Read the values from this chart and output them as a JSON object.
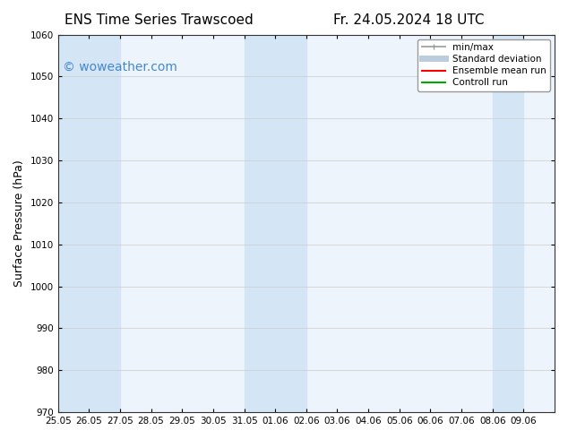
{
  "title_left": "ENS Time Series Trawscoed",
  "title_right": "Fr. 24.05.2024 18 UTC",
  "xlabel_ticks": [
    "25.05",
    "26.05",
    "27.05",
    "28.05",
    "29.05",
    "30.05",
    "31.05",
    "01.06",
    "02.06",
    "03.06",
    "04.06",
    "05.06",
    "06.06",
    "07.06",
    "08.06",
    "09.06"
  ],
  "ylabel": "Surface Pressure (hPa)",
  "ylim": [
    970,
    1060
  ],
  "yticks": [
    970,
    980,
    990,
    1000,
    1010,
    1020,
    1030,
    1040,
    1050,
    1060
  ],
  "bg_color": "#ffffff",
  "plot_bg_color": "#eef4fb",
  "shaded_color": "#d4e6f5",
  "watermark": "© woweather.com",
  "watermark_color": "#4488cc",
  "title_fontsize": 11,
  "tick_fontsize": 7.5,
  "ylabel_fontsize": 9,
  "watermark_fontsize": 10,
  "n_cols": 16,
  "shaded_col_indices": [
    0,
    1,
    6,
    7,
    14
  ]
}
